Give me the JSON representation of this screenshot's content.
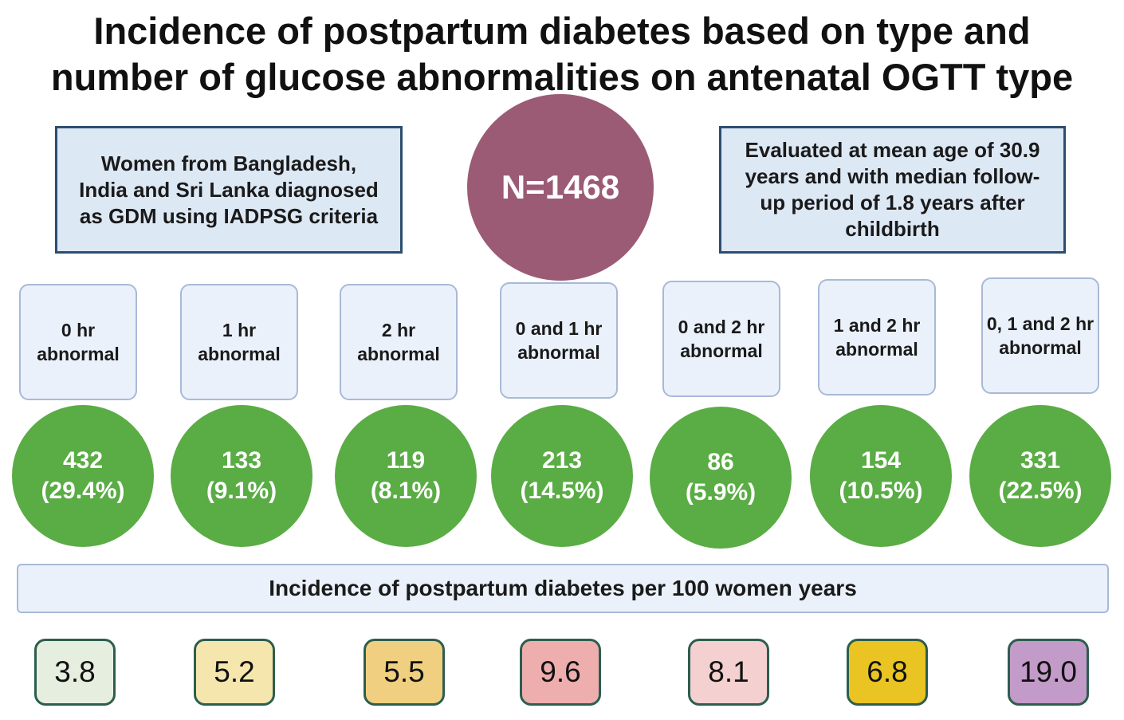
{
  "title": {
    "line1": "Incidence of postpartum diabetes based on type and",
    "line2": "number of glucose abnormalities on antenatal OGTT type"
  },
  "left_box": {
    "text": "Women from Bangladesh, India and Sri Lanka diagnosed as GDM using IADPSG criteria"
  },
  "center_circle": {
    "text": "N=1468"
  },
  "right_box": {
    "text": "Evaluated at mean age of 30.9 years and with median follow-up period of 1.8 years after childbirth"
  },
  "groups": [
    {
      "label": "0 hr abnormal",
      "count": "432",
      "percent": "(29.4%)",
      "incidence": "3.8"
    },
    {
      "label": "1 hr abnormal",
      "count": "133",
      "percent": "(9.1%)",
      "incidence": "5.2"
    },
    {
      "label": "2 hr abnormal",
      "count": "119",
      "percent": "(8.1%)",
      "incidence": "5.5"
    },
    {
      "label": "0 and 1 hr abnormal",
      "count": "213",
      "percent": "(14.5%)",
      "incidence": "9.6"
    },
    {
      "label": "0 and 2 hr abnormal",
      "count": "86",
      "percent": "(5.9%)",
      "incidence": "8.1"
    },
    {
      "label": "1 and 2 hr abnormal",
      "count": "154",
      "percent": "(10.5%)",
      "incidence": "6.8"
    },
    {
      "label": "0, 1 and 2 hr abnormal",
      "count": "331",
      "percent": "(22.5%)",
      "incidence": "19.0"
    }
  ],
  "banner": {
    "text": "Incidence of postpartum diabetes per 100 women years"
  },
  "colors": {
    "incidence_boxes": [
      "#e6eee0",
      "#f5e6ae",
      "#f0d080",
      "#eeaeae",
      "#f4d0d0",
      "#e9c423",
      "#c39bc8"
    ],
    "circle_green": "#5aac45",
    "circle_purple": "#9b5b74"
  }
}
